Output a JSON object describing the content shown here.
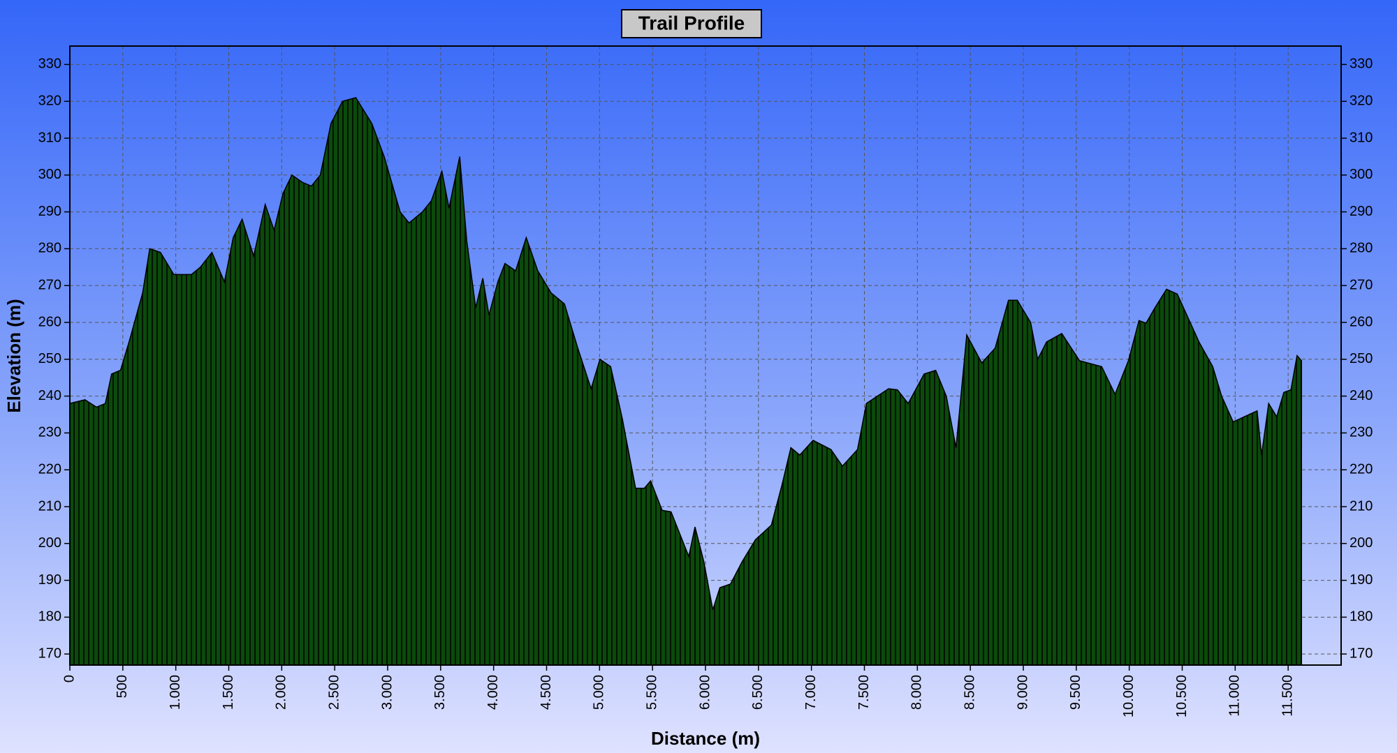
{
  "chart_data": {
    "type": "area",
    "title": "Trail Profile",
    "x_label": "Distance (m)",
    "y_label": "Elevation (m)",
    "color": "#0b4a0b",
    "grid": true,
    "x": [
      0,
      143,
      251,
      335,
      394,
      478,
      562,
      687,
      754,
      855,
      981,
      1148,
      1232,
      1341,
      1459,
      1542,
      1626,
      1735,
      1844,
      1928,
      2012,
      2096,
      2196,
      2280,
      2364,
      2465,
      2574,
      2699,
      2850,
      2967,
      3118,
      3202,
      3328,
      3412,
      3512,
      3579,
      3680,
      3747,
      3831,
      3898,
      3956,
      4040,
      4107,
      4208,
      4308,
      4417,
      4543,
      4669,
      4795,
      4920,
      5004,
      5105,
      5214,
      5340,
      5423,
      5482,
      5591,
      5675,
      5842,
      5901,
      5985,
      6069,
      6136,
      6236,
      6345,
      6471,
      6622,
      6723,
      6806,
      6890,
      7016,
      7184,
      7293,
      7435,
      7519,
      7728,
      7812,
      7913,
      8064,
      8173,
      8273,
      8365,
      8466,
      8608,
      8734,
      8860,
      8944,
      9069,
      9136,
      9220,
      9363,
      9531,
      9740,
      9866,
      9992,
      10092,
      10159,
      10243,
      10352,
      10453,
      10662,
      10788,
      10872,
      10981,
      11207,
      11249,
      11316,
      11392,
      11459,
      11526,
      11584,
      11626
    ],
    "values": [
      238,
      239,
      237,
      238,
      246,
      247,
      255,
      268,
      280,
      279,
      273,
      273,
      275,
      279,
      271,
      283,
      288,
      278,
      292,
      285,
      295,
      300,
      298,
      297,
      300,
      314,
      320,
      321,
      314,
      305,
      290,
      287,
      290,
      293,
      301,
      291,
      305,
      282,
      264,
      272,
      262,
      271,
      276,
      274,
      283,
      274,
      268,
      265,
      253,
      242,
      250,
      248,
      234,
      215,
      215,
      217,
      209,
      208.6,
      196.5,
      204.5,
      195,
      182,
      188,
      189,
      195,
      201,
      205,
      216,
      226,
      224,
      228,
      225.5,
      221,
      225.5,
      238,
      242,
      241.7,
      238,
      246,
      247,
      240,
      226,
      256.6,
      249,
      253,
      266,
      266,
      260,
      250,
      254.7,
      257,
      249.6,
      248,
      240.5,
      249.6,
      260.5,
      259.8,
      264,
      269,
      267.7,
      254.5,
      248,
      240,
      233,
      236,
      224,
      238,
      234.4,
      241,
      241.7,
      251,
      249.6
    ],
    "xlim": [
      0,
      12000
    ],
    "ylim": [
      167,
      335
    ],
    "xticks": [
      0,
      500,
      {
        "value": 1000,
        "label": "1.000"
      },
      {
        "value": 1500,
        "label": "1.500"
      },
      {
        "value": 2000,
        "label": "2.000"
      },
      {
        "value": 2500,
        "label": "2.500"
      },
      {
        "value": 3000,
        "label": "3.000"
      },
      {
        "value": 3500,
        "label": "3.500"
      },
      {
        "value": 4000,
        "label": "4.000"
      },
      {
        "value": 4500,
        "label": "4.500"
      },
      {
        "value": 5000,
        "label": "5.000"
      },
      {
        "value": 5500,
        "label": "5.500"
      },
      {
        "value": 6000,
        "label": "6.000"
      },
      {
        "value": 6500,
        "label": "6.500"
      },
      {
        "value": 7000,
        "label": "7.000"
      },
      {
        "value": 7500,
        "label": "7.500"
      },
      {
        "value": 8000,
        "label": "8.000"
      },
      {
        "value": 8500,
        "label": "8.500"
      },
      {
        "value": 9000,
        "label": "9.000"
      },
      {
        "value": 9500,
        "label": "9.500"
      },
      {
        "value": 10000,
        "label": "10.000"
      },
      {
        "value": 10500,
        "label": "10.500"
      },
      {
        "value": 11000,
        "label": "11.000"
      },
      {
        "value": 11500,
        "label": "11.500"
      }
    ],
    "yticks": [
      170,
      180,
      190,
      200,
      210,
      220,
      230,
      240,
      250,
      260,
      270,
      280,
      290,
      300,
      310,
      320,
      330
    ]
  }
}
